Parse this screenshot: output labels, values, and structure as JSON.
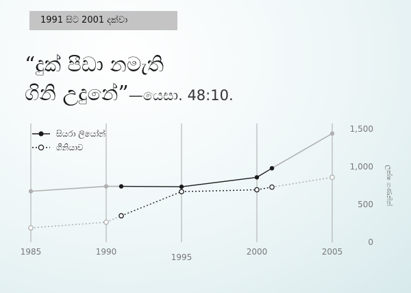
{
  "header": {
    "banner": "1991 සිට 2001 දක්වා",
    "quote_line1": "“දුක් පීඩා නමැති",
    "quote_line2": "ගිනි උදුනේ”",
    "citation": "—යෙසා. 48:10."
  },
  "chart_data": {
    "type": "line",
    "title": "",
    "xlabel": "",
    "ylabel": "ලක්ෂ ගණනින්",
    "x_ticks": [
      1985,
      1990,
      1995,
      2000,
      2005
    ],
    "x_tick_labels": [
      "1985",
      "1990",
      "1995",
      "2000",
      "2005"
    ],
    "y_ticks": [
      0,
      500,
      1000,
      1500
    ],
    "y_tick_labels": [
      "0",
      "500",
      "1,000",
      "1,500"
    ],
    "xlim": [
      1985,
      2005
    ],
    "ylim": [
      0,
      1500
    ],
    "grid": "vertical",
    "legend_position": "top-left",
    "context_color": "#b0b0b0",
    "series": [
      {
        "name": "සියරා ලියෝන්",
        "marker": "filled",
        "color": "#1a1a1a",
        "line_style": "solid",
        "highlight_range": [
          1991,
          2001
        ],
        "x": [
          1985,
          1990,
          1991,
          1995,
          2000,
          2001,
          2005
        ],
        "values": [
          675,
          740,
          740,
          735,
          860,
          980,
          1440
        ]
      },
      {
        "name": "ගිනියාව",
        "marker": "open",
        "color": "#1a1a1a",
        "line_style": "dotted",
        "highlight_range": [
          1991,
          2001
        ],
        "x": [
          1985,
          1990,
          1991,
          1995,
          2000,
          2001,
          2005
        ],
        "values": [
          190,
          265,
          350,
          670,
          695,
          730,
          860
        ]
      }
    ]
  }
}
